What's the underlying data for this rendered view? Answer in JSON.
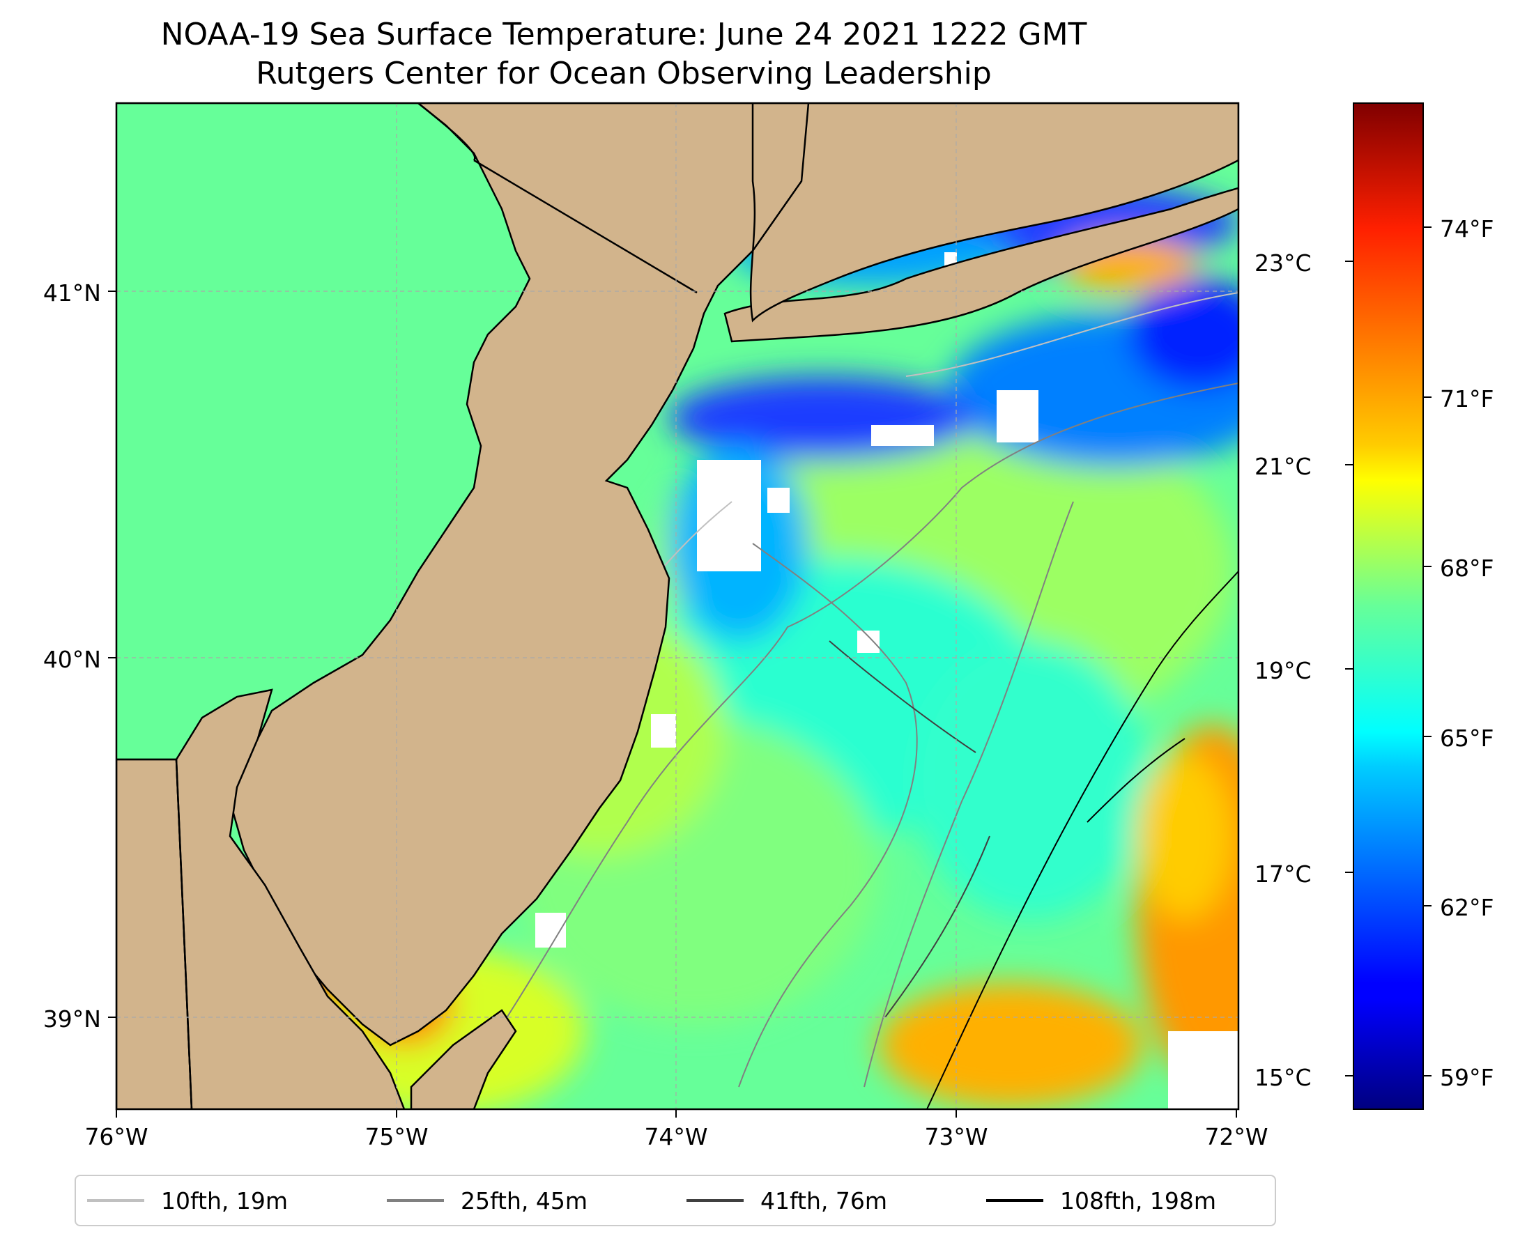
{
  "header": {
    "title_line1": "NOAA-19 Sea Surface Temperature: June 24 2021 1222 GMT",
    "title_line2": "Rutgers Center for Ocean Observing Leadership"
  },
  "map": {
    "lon_range": [
      -76.0,
      -72.0
    ],
    "lat_range": [
      38.72,
      41.52
    ],
    "lon_ticks": [
      "76°W",
      "75°W",
      "74°W",
      "73°W",
      "72°W"
    ],
    "lat_ticks": [
      "41°N",
      "40°N",
      "39°N"
    ],
    "land_color": "#d2b48c",
    "gridlines": true
  },
  "colorbar": {
    "colormap": "jet",
    "celsius_ticks": [
      "23°C",
      "21°C",
      "19°C",
      "17°C",
      "15°C"
    ],
    "fahrenheit_ticks": [
      "74°F",
      "71°F",
      "68°F",
      "65°F",
      "62°F",
      "59°F"
    ]
  },
  "legend": {
    "items": [
      {
        "label": "10fth, 19m",
        "color": "#c0c0c0"
      },
      {
        "label": "25fth, 45m",
        "color": "#808080"
      },
      {
        "label": "41fth, 76m",
        "color": "#404040"
      },
      {
        "label": "108fth, 198m",
        "color": "#000000"
      }
    ]
  }
}
